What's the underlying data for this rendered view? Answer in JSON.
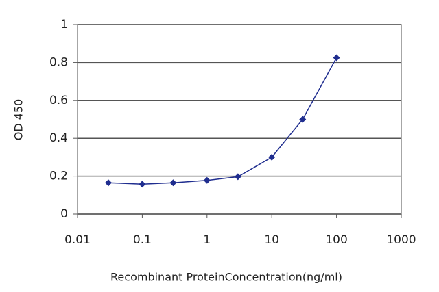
{
  "chart_data": {
    "type": "line",
    "xlabel": "Recombinant ProteinConcentration(ng/ml)",
    "ylabel": "OD 450",
    "x": [
      0.03,
      0.1,
      0.3,
      1,
      3,
      10,
      30,
      100
    ],
    "values": [
      0.165,
      0.158,
      0.165,
      0.178,
      0.197,
      0.3,
      0.5,
      0.825
    ],
    "color": "#1f2d8f",
    "xscale": "log",
    "xlim": [
      0.01,
      1000
    ],
    "xticks": [
      0.01,
      0.1,
      1,
      10,
      100,
      1000
    ],
    "ylim": [
      0,
      1
    ],
    "yticks": [
      0,
      0.2,
      0.4,
      0.6,
      0.8,
      1
    ],
    "grid": true
  }
}
